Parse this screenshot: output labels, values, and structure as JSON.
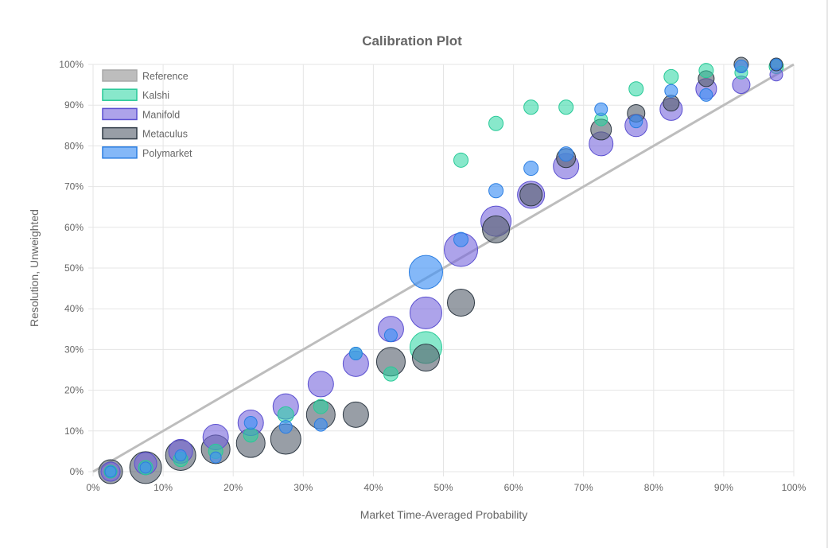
{
  "chart_data": {
    "type": "scatter",
    "title": "Calibration Plot",
    "xlabel": "Market Time-Averaged Probability",
    "ylabel": "Resolution, Unweighted",
    "xlim": [
      0,
      1
    ],
    "ylim": [
      0,
      1
    ],
    "x_ticks": [
      "0%",
      "10%",
      "20%",
      "30%",
      "40%",
      "50%",
      "60%",
      "70%",
      "80%",
      "90%",
      "100%"
    ],
    "y_ticks": [
      "0%",
      "10%",
      "20%",
      "30%",
      "40%",
      "50%",
      "60%",
      "70%",
      "80%",
      "90%",
      "100%"
    ],
    "grid": true,
    "legend_position": "top-left",
    "reference": {
      "name": "Reference",
      "color": "#bdbdbd",
      "points": [
        [
          0,
          0
        ],
        [
          1,
          1
        ]
      ]
    },
    "series": [
      {
        "name": "Kalshi",
        "fill": "rgba(38,214,160,0.55)",
        "stroke": "#27c997",
        "points": [
          {
            "x": 0.025,
            "y": 0.0,
            "r": 8
          },
          {
            "x": 0.075,
            "y": 0.01,
            "r": 9
          },
          {
            "x": 0.125,
            "y": 0.03,
            "r": 9
          },
          {
            "x": 0.175,
            "y": 0.05,
            "r": 9
          },
          {
            "x": 0.225,
            "y": 0.09,
            "r": 9
          },
          {
            "x": 0.275,
            "y": 0.14,
            "r": 10
          },
          {
            "x": 0.325,
            "y": 0.16,
            "r": 9
          },
          {
            "x": 0.375,
            "y": 0.29,
            "r": 8
          },
          {
            "x": 0.425,
            "y": 0.24,
            "r": 9
          },
          {
            "x": 0.475,
            "y": 0.305,
            "r": 20
          },
          {
            "x": 0.525,
            "y": 0.765,
            "r": 9
          },
          {
            "x": 0.575,
            "y": 0.855,
            "r": 9
          },
          {
            "x": 0.625,
            "y": 0.895,
            "r": 9
          },
          {
            "x": 0.675,
            "y": 0.895,
            "r": 9
          },
          {
            "x": 0.725,
            "y": 0.865,
            "r": 8
          },
          {
            "x": 0.775,
            "y": 0.94,
            "r": 9
          },
          {
            "x": 0.825,
            "y": 0.97,
            "r": 9
          },
          {
            "x": 0.875,
            "y": 0.985,
            "r": 9
          },
          {
            "x": 0.925,
            "y": 0.98,
            "r": 8
          },
          {
            "x": 0.975,
            "y": 0.995,
            "r": 9
          }
        ]
      },
      {
        "name": "Manifold",
        "fill": "rgba(118,102,220,0.60)",
        "stroke": "#5a4fd0",
        "points": [
          {
            "x": 0.025,
            "y": 0.0,
            "r": 12
          },
          {
            "x": 0.075,
            "y": 0.02,
            "r": 14
          },
          {
            "x": 0.125,
            "y": 0.05,
            "r": 15
          },
          {
            "x": 0.175,
            "y": 0.085,
            "r": 16
          },
          {
            "x": 0.225,
            "y": 0.12,
            "r": 16
          },
          {
            "x": 0.275,
            "y": 0.16,
            "r": 16
          },
          {
            "x": 0.325,
            "y": 0.215,
            "r": 16
          },
          {
            "x": 0.375,
            "y": 0.265,
            "r": 16
          },
          {
            "x": 0.425,
            "y": 0.35,
            "r": 16
          },
          {
            "x": 0.475,
            "y": 0.39,
            "r": 20
          },
          {
            "x": 0.525,
            "y": 0.545,
            "r": 21
          },
          {
            "x": 0.575,
            "y": 0.615,
            "r": 19
          },
          {
            "x": 0.625,
            "y": 0.68,
            "r": 17
          },
          {
            "x": 0.675,
            "y": 0.75,
            "r": 16
          },
          {
            "x": 0.725,
            "y": 0.805,
            "r": 15
          },
          {
            "x": 0.775,
            "y": 0.85,
            "r": 14
          },
          {
            "x": 0.825,
            "y": 0.89,
            "r": 14
          },
          {
            "x": 0.875,
            "y": 0.94,
            "r": 13
          },
          {
            "x": 0.925,
            "y": 0.95,
            "r": 11
          },
          {
            "x": 0.975,
            "y": 0.975,
            "r": 8
          }
        ]
      },
      {
        "name": "Metaculus",
        "fill": "rgba(88,99,112,0.62)",
        "stroke": "#2f3a45",
        "points": [
          {
            "x": 0.025,
            "y": 0.0,
            "r": 15
          },
          {
            "x": 0.075,
            "y": 0.01,
            "r": 20
          },
          {
            "x": 0.125,
            "y": 0.04,
            "r": 19
          },
          {
            "x": 0.175,
            "y": 0.055,
            "r": 18
          },
          {
            "x": 0.225,
            "y": 0.07,
            "r": 18
          },
          {
            "x": 0.275,
            "y": 0.08,
            "r": 19
          },
          {
            "x": 0.325,
            "y": 0.14,
            "r": 18
          },
          {
            "x": 0.375,
            "y": 0.14,
            "r": 16
          },
          {
            "x": 0.425,
            "y": 0.27,
            "r": 18
          },
          {
            "x": 0.475,
            "y": 0.28,
            "r": 17
          },
          {
            "x": 0.525,
            "y": 0.415,
            "r": 17
          },
          {
            "x": 0.575,
            "y": 0.595,
            "r": 17
          },
          {
            "x": 0.625,
            "y": 0.68,
            "r": 14
          },
          {
            "x": 0.675,
            "y": 0.77,
            "r": 12
          },
          {
            "x": 0.725,
            "y": 0.84,
            "r": 13
          },
          {
            "x": 0.775,
            "y": 0.88,
            "r": 11
          },
          {
            "x": 0.825,
            "y": 0.905,
            "r": 10
          },
          {
            "x": 0.875,
            "y": 0.965,
            "r": 10
          },
          {
            "x": 0.925,
            "y": 1.0,
            "r": 9
          },
          {
            "x": 0.975,
            "y": 1.0,
            "r": 8
          }
        ]
      },
      {
        "name": "Polymarket",
        "fill": "rgba(66,146,245,0.65)",
        "stroke": "#2a7de1",
        "points": [
          {
            "x": 0.025,
            "y": 0.0,
            "r": 7
          },
          {
            "x": 0.075,
            "y": 0.01,
            "r": 7
          },
          {
            "x": 0.125,
            "y": 0.04,
            "r": 7
          },
          {
            "x": 0.175,
            "y": 0.035,
            "r": 7
          },
          {
            "x": 0.225,
            "y": 0.12,
            "r": 8
          },
          {
            "x": 0.275,
            "y": 0.11,
            "r": 8
          },
          {
            "x": 0.325,
            "y": 0.115,
            "r": 8
          },
          {
            "x": 0.375,
            "y": 0.29,
            "r": 8
          },
          {
            "x": 0.425,
            "y": 0.335,
            "r": 8
          },
          {
            "x": 0.475,
            "y": 0.49,
            "r": 21
          },
          {
            "x": 0.525,
            "y": 0.57,
            "r": 9
          },
          {
            "x": 0.575,
            "y": 0.69,
            "r": 9
          },
          {
            "x": 0.625,
            "y": 0.745,
            "r": 9
          },
          {
            "x": 0.675,
            "y": 0.78,
            "r": 9
          },
          {
            "x": 0.725,
            "y": 0.89,
            "r": 8
          },
          {
            "x": 0.775,
            "y": 0.86,
            "r": 8
          },
          {
            "x": 0.825,
            "y": 0.935,
            "r": 8
          },
          {
            "x": 0.875,
            "y": 0.925,
            "r": 8
          },
          {
            "x": 0.925,
            "y": 0.995,
            "r": 8
          },
          {
            "x": 0.975,
            "y": 1.0,
            "r": 7
          }
        ]
      }
    ]
  }
}
